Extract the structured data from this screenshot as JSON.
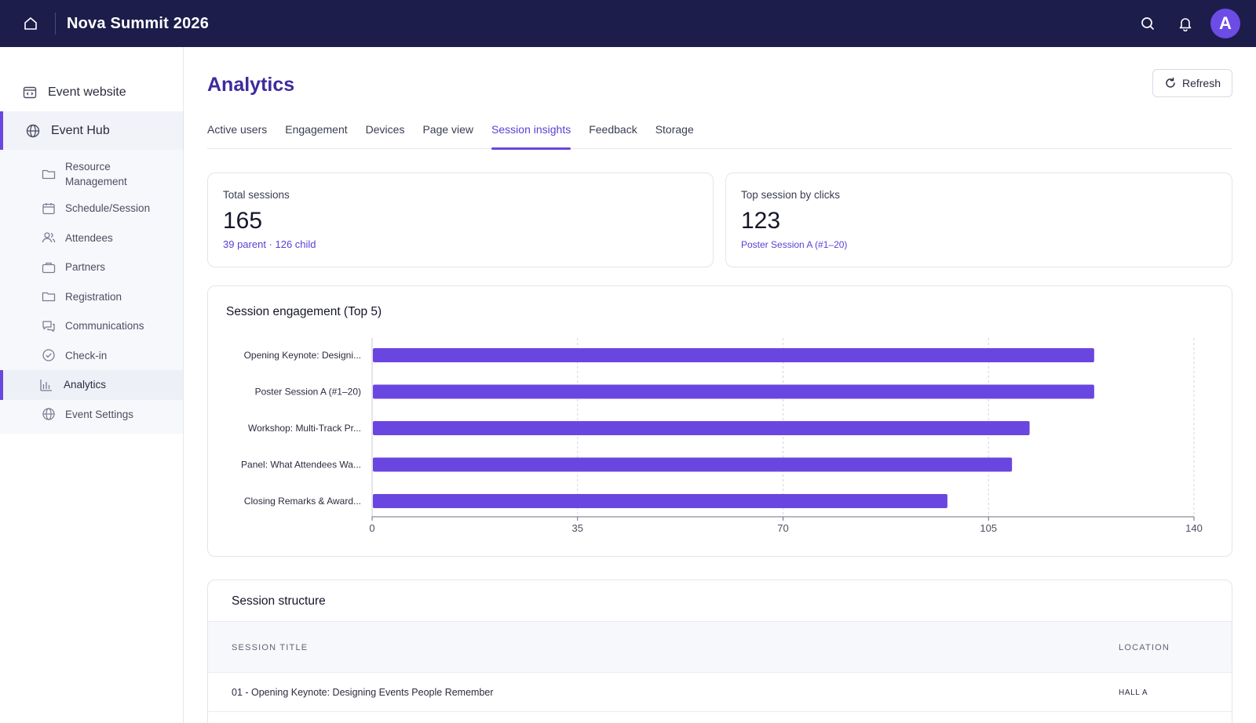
{
  "header": {
    "app_title": "Nova Summit 2026",
    "home_icon": "home-icon",
    "search_icon": "search-icon",
    "bell_icon": "bell-icon",
    "avatar_initial": "A",
    "background_color": "#1c1d4b",
    "avatar_color": "#6d4ce6"
  },
  "sidebar": {
    "top_items": [
      {
        "label": "Event website",
        "icon": "website-icon"
      },
      {
        "label": "Event Hub",
        "icon": "globe-icon",
        "active": true
      }
    ],
    "sub_items": [
      {
        "label": "Resource Management",
        "icon": "folder-icon"
      },
      {
        "label": "Schedule/Session",
        "icon": "calendar-icon"
      },
      {
        "label": "Attendees",
        "icon": "users-icon"
      },
      {
        "label": "Partners",
        "icon": "briefcase-icon"
      },
      {
        "label": "Registration",
        "icon": "folder-icon"
      },
      {
        "label": "Communications",
        "icon": "chat-icon"
      },
      {
        "label": "Check-in",
        "icon": "check-circle-icon"
      },
      {
        "label": "Analytics",
        "icon": "bar-chart-icon",
        "active": true
      },
      {
        "label": "Event Settings",
        "icon": "globe-icon"
      }
    ],
    "accent_color": "#6a46e0"
  },
  "page": {
    "title": "Analytics",
    "refresh_label": "Refresh",
    "refresh_icon": "refresh-icon"
  },
  "tabs": [
    {
      "label": "Active users"
    },
    {
      "label": "Engagement"
    },
    {
      "label": "Devices"
    },
    {
      "label": "Page view"
    },
    {
      "label": "Session insights",
      "active": true
    },
    {
      "label": "Feedback"
    },
    {
      "label": "Storage"
    }
  ],
  "stats": {
    "total": {
      "label": "Total sessions",
      "value": "165",
      "sub": "39 parent · 126 child"
    },
    "top": {
      "label": "Top session by clicks",
      "value": "123",
      "sub": "Poster Session A (#1–20)"
    }
  },
  "chart_data": {
    "type": "bar",
    "orientation": "horizontal",
    "title": "Session engagement (Top 5)",
    "categories": [
      "Opening Keynote: Designi...",
      "Poster Session A (#1–20)",
      "Workshop: Multi-Track Pr...",
      "Panel: What Attendees Wa...",
      "Closing Remarks & Award..."
    ],
    "values": [
      123,
      123,
      112,
      109,
      98
    ],
    "xlim": [
      0,
      140
    ],
    "xticks": [
      0,
      35,
      70,
      105,
      140
    ],
    "grid": "vertical dashed",
    "bar_color": "#6a46e0"
  },
  "table": {
    "title": "Session structure",
    "columns": [
      "SESSION TITLE",
      "LOCATION"
    ],
    "rows": [
      {
        "title": "01 - Opening Keynote: Designing Events People Remember",
        "location": "HALL A"
      }
    ]
  }
}
